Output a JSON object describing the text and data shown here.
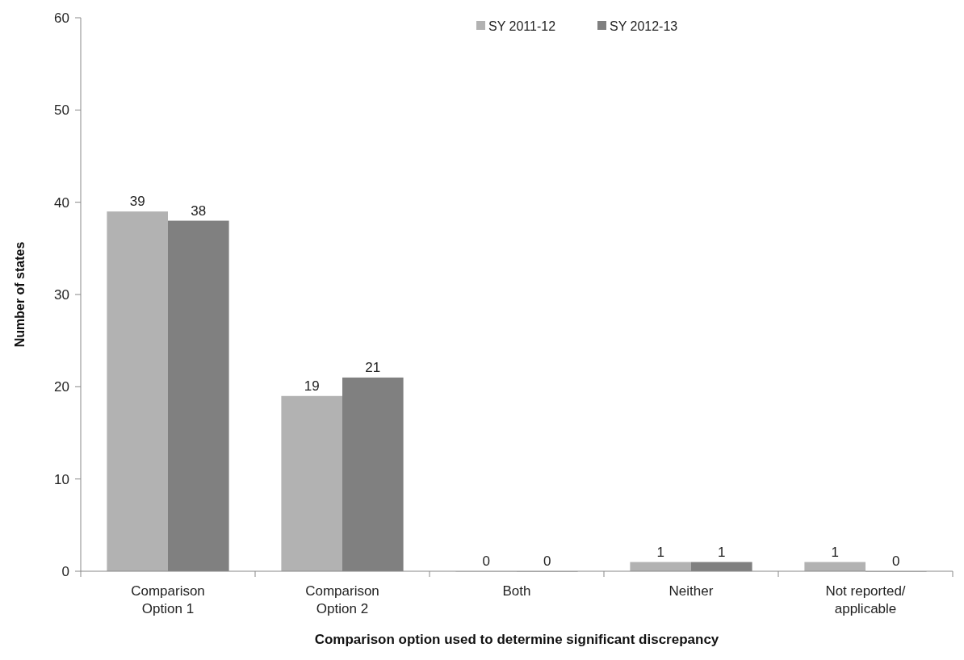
{
  "chart_data": {
    "type": "bar",
    "xlabel": "Comparison option used to determine significant discrepancy",
    "ylabel": "Number of states",
    "categories": [
      "Comparison Option 1",
      "Comparison Option 2",
      "Both",
      "Neither",
      "Not reported/ applicable"
    ],
    "series": [
      {
        "name": "SY 2011-12",
        "color": "#b2b2b2",
        "values": [
          39,
          19,
          0,
          1,
          1
        ]
      },
      {
        "name": "SY 2012-13",
        "color": "#808080",
        "values": [
          38,
          21,
          0,
          1,
          0
        ]
      }
    ],
    "ylim": [
      0,
      60
    ],
    "yticks": [
      0,
      10,
      20,
      30,
      40,
      50,
      60
    ],
    "data_labels": true,
    "legend": "top",
    "grid": false
  }
}
